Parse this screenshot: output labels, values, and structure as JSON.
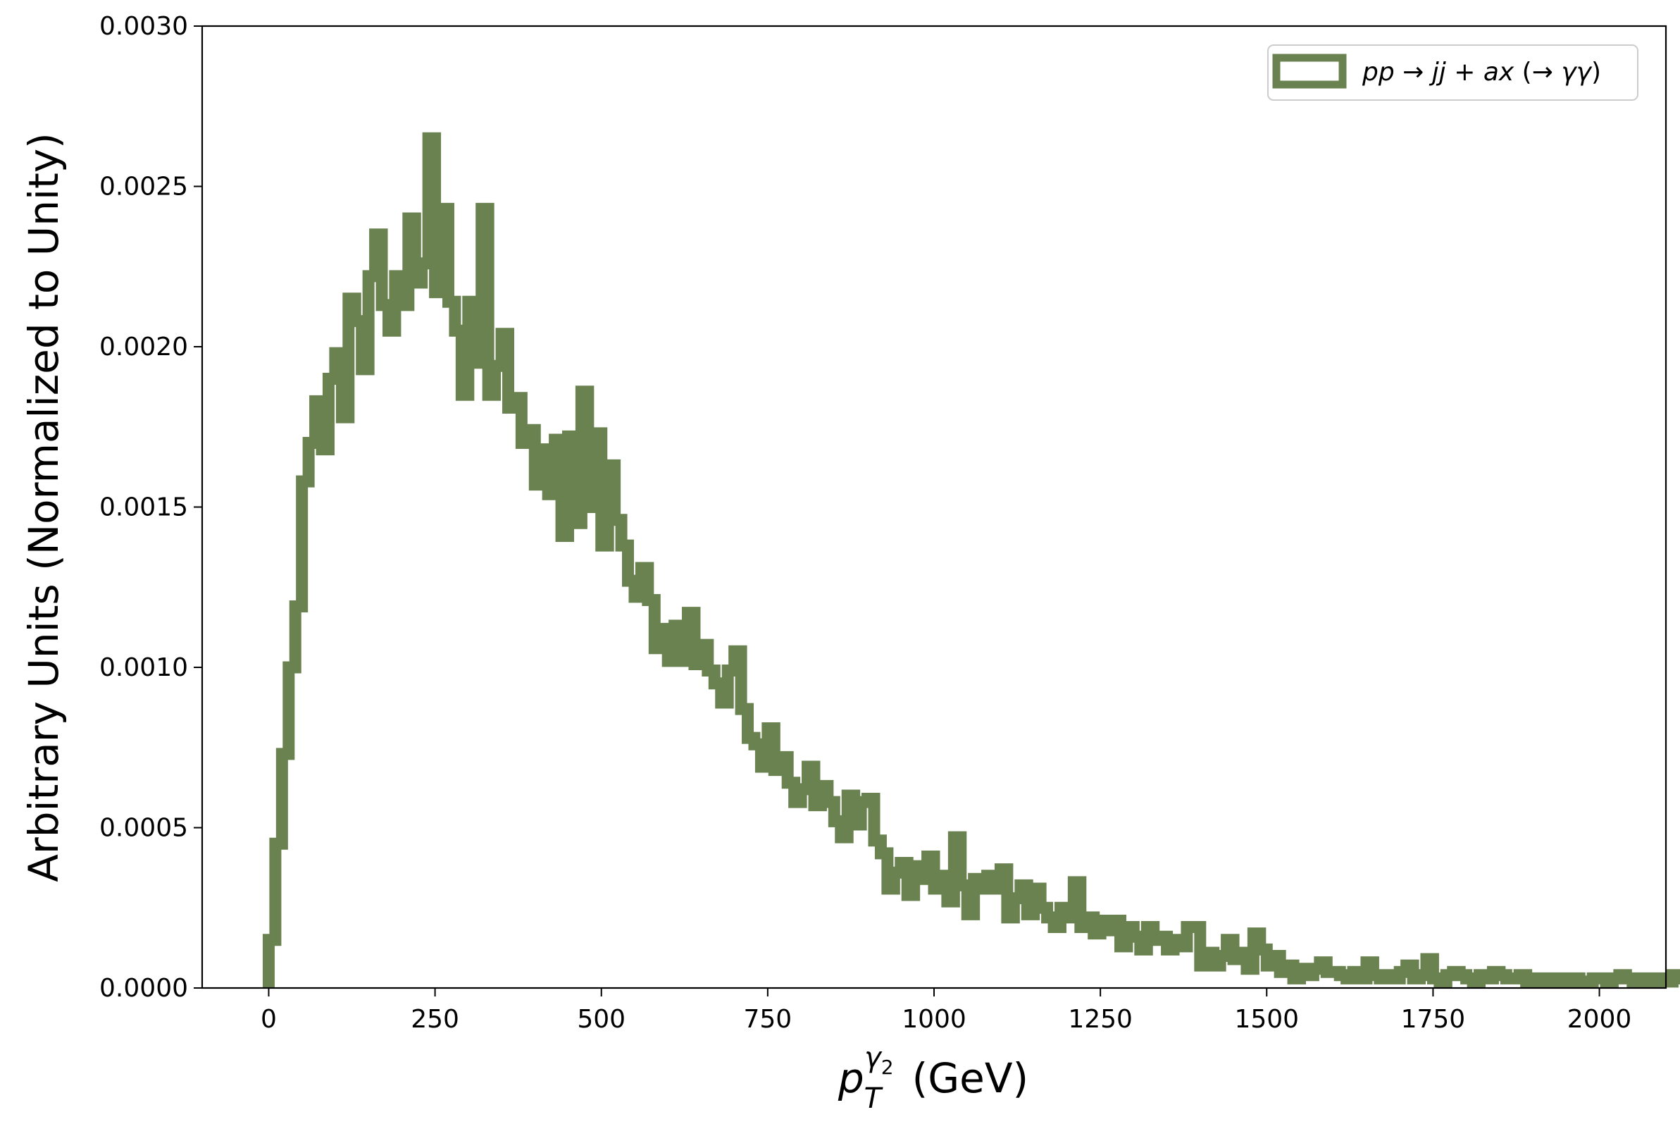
{
  "chart_data": {
    "type": "step-histogram",
    "xlabel": "p_T^{γ2} (GeV)",
    "xlabel_parts": {
      "main": "p",
      "sub": "T",
      "sup": "γ",
      "supsub": "2",
      "unit": "(GeV)"
    },
    "ylabel": "Arbitrary Units (Normalized to Unity)",
    "xlim": [
      -100,
      2100
    ],
    "ylim": [
      0,
      0.003
    ],
    "xticks": [
      0,
      250,
      500,
      750,
      1000,
      1250,
      1500,
      1750,
      2000
    ],
    "xtick_labels": [
      "0",
      "250",
      "500",
      "750",
      "1000",
      "1250",
      "1500",
      "1750",
      "2000"
    ],
    "yticks": [
      0,
      0.0005,
      0.001,
      0.0015,
      0.002,
      0.0025,
      0.003
    ],
    "ytick_labels": [
      "0.0000",
      "0.0005",
      "0.0010",
      "0.0015",
      "0.0020",
      "0.0025",
      "0.0030"
    ],
    "grid": false,
    "legend": {
      "position": "top-right",
      "label_parts": [
        "pp",
        " → ",
        "jj",
        " + ",
        "ax",
        " (→ ",
        "γγ",
        ")"
      ]
    },
    "series": [
      {
        "name": "pp → jj + ax (→ γγ)",
        "color": "#6a824f",
        "bin_width": 10,
        "x_start": 0,
        "values": [
          0.00015,
          0.00045,
          0.00073,
          0.001,
          0.00119,
          0.00158,
          0.0017,
          0.00183,
          0.00168,
          0.0019,
          0.00198,
          0.00178,
          0.00215,
          0.00208,
          0.00193,
          0.00222,
          0.00235,
          0.00213,
          0.00205,
          0.00222,
          0.00213,
          0.0024,
          0.0022,
          0.00226,
          0.00265,
          0.00217,
          0.00243,
          0.00214,
          0.00205,
          0.00185,
          0.00214,
          0.00195,
          0.00243,
          0.00185,
          0.00194,
          0.00204,
          0.00181,
          0.00184,
          0.0017,
          0.00174,
          0.00157,
          0.00168,
          0.00154,
          0.00171,
          0.00141,
          0.00172,
          0.00145,
          0.00186,
          0.0015,
          0.00173,
          0.00138,
          0.00163,
          0.00146,
          0.00138,
          0.00127,
          0.00122,
          0.00131,
          0.00121,
          0.00106,
          0.00112,
          0.00102,
          0.00113,
          0.00102,
          0.00117,
          0.00101,
          0.00107,
          0.00099,
          0.00095,
          0.00089,
          0.00099,
          0.00105,
          0.00087,
          0.00078,
          0.00076,
          0.00069,
          0.00081,
          0.00068,
          0.00072,
          0.00064,
          0.00058,
          0.00062,
          0.00069,
          0.00057,
          0.00063,
          0.00058,
          0.00052,
          0.00047,
          0.0006,
          0.00051,
          0.00058,
          0.00059,
          0.00046,
          0.00042,
          0.00031,
          0.00036,
          0.00039,
          0.00029,
          0.00038,
          0.00034,
          0.00041,
          0.00031,
          0.00035,
          0.00027,
          0.00047,
          0.00032,
          0.00023,
          0.00034,
          0.00031,
          0.00035,
          0.00031,
          0.00037,
          0.00022,
          0.00028,
          0.00032,
          0.00023,
          0.00031,
          0.00025,
          0.00022,
          0.00019,
          0.00025,
          0.00022,
          0.00033,
          0.00019,
          0.00022,
          0.00017,
          0.00021,
          0.00018,
          0.00021,
          0.00013,
          0.00019,
          0.00016,
          0.00012,
          0.00019,
          0.00015,
          0.00016,
          0.00012,
          0.00015,
          0.00013,
          0.00019,
          0.00019,
          7e-05,
          0.00011,
          7e-05,
          0.0001,
          0.00015,
          9e-05,
          0.00011,
          6e-05,
          0.00017,
          0.00012,
          7e-05,
          0.0001,
          5e-05,
          7e-05,
          3e-05,
          6e-05,
          4e-05,
          6e-05,
          8e-05,
          5e-05,
          5e-05,
          4e-05,
          3e-05,
          5e-05,
          3e-05,
          8e-05,
          4e-05,
          3e-05,
          4e-05,
          3e-05,
          5e-05,
          7e-05,
          3e-05,
          4e-05,
          9e-05,
          3e-05,
          2e-05,
          4e-05,
          5e-05,
          4e-05,
          3e-05,
          2e-05,
          4e-05,
          3e-05,
          5e-05,
          4e-05,
          3e-05,
          3e-05,
          4e-05,
          2e-05,
          3e-05,
          2e-05,
          3e-05,
          2e-05,
          3e-05,
          2e-05,
          3e-05,
          2e-05,
          2e-05,
          3e-05,
          3e-05,
          2e-05,
          3e-05,
          4e-05,
          3e-05,
          2e-05,
          3e-05,
          2e-05,
          3e-05,
          2e-05,
          2e-05,
          4e-05,
          3e-05,
          2e-05,
          2e-05,
          3e-05,
          2e-05,
          3e-05,
          2e-05,
          2e-05,
          1e-05,
          2e-05,
          1e-05,
          2e-05,
          1e-05,
          2e-05,
          1e-05,
          2e-05,
          1e-05,
          2e-05,
          1e-05,
          1e-05,
          2e-05,
          1e-05,
          1e-05,
          1e-05,
          2e-05,
          3e-05,
          2e-05,
          2e-05,
          1e-05,
          2e-05,
          2e-05,
          1e-05,
          2e-05,
          1e-05,
          2e-05,
          2e-05,
          3e-05,
          2e-05,
          2e-05,
          2e-05,
          1e-05,
          2e-05,
          2e-05,
          3e-05,
          2e-05,
          1e-05,
          2e-05,
          1e-05,
          2e-05,
          2e-05,
          2e-05,
          1e-05,
          2e-05,
          1e-05,
          1e-05,
          2e-05,
          1e-05,
          1e-05,
          1e-05,
          2e-05,
          1e-05,
          2e-05,
          2e-05,
          1e-05,
          1e-05,
          2e-05,
          2e-05,
          2e-05,
          1e-05,
          1e-05,
          2e-05,
          2e-05,
          1e-05,
          1e-05,
          1e-05,
          1e-05,
          2e-05,
          1e-05,
          1e-05,
          2e-05,
          1e-05,
          1e-05,
          1e-05,
          2e-05,
          1e-05,
          2e-05,
          1e-05,
          1e-05,
          1e-05,
          1e-05,
          1e-05,
          2e-05,
          1e-05,
          1e-05,
          1e-05,
          1e-05,
          1e-05,
          2e-05,
          1e-05,
          1e-05,
          1e-05,
          1e-05,
          1e-05,
          1e-05,
          1e-05,
          1e-05,
          1e-05,
          2e-05,
          1e-05,
          1e-05,
          1e-05,
          1e-05,
          1e-05,
          1e-05,
          1e-05,
          1e-05,
          1e-05,
          1e-05,
          1e-05,
          1e-05,
          1e-05,
          1e-05,
          1e-05,
          1e-05,
          1e-05,
          1e-05,
          1e-05,
          1e-05,
          1e-05,
          1e-05,
          1e-05,
          1e-05,
          1e-05,
          1e-05,
          1e-05,
          1e-05,
          1e-05,
          1e-05,
          1e-05,
          1e-05,
          1e-05,
          1e-05,
          1e-05,
          1e-05,
          1e-05,
          1e-05,
          1e-05,
          1e-05,
          1e-05,
          1e-05,
          1e-05,
          1e-05,
          1e-05,
          1e-05,
          1e-05,
          1e-05,
          1e-05,
          1e-05,
          1e-05,
          1e-05,
          1e-05,
          1e-05,
          1e-05,
          1e-05,
          1e-05,
          1e-05,
          1e-05,
          1e-05
        ]
      }
    ]
  }
}
